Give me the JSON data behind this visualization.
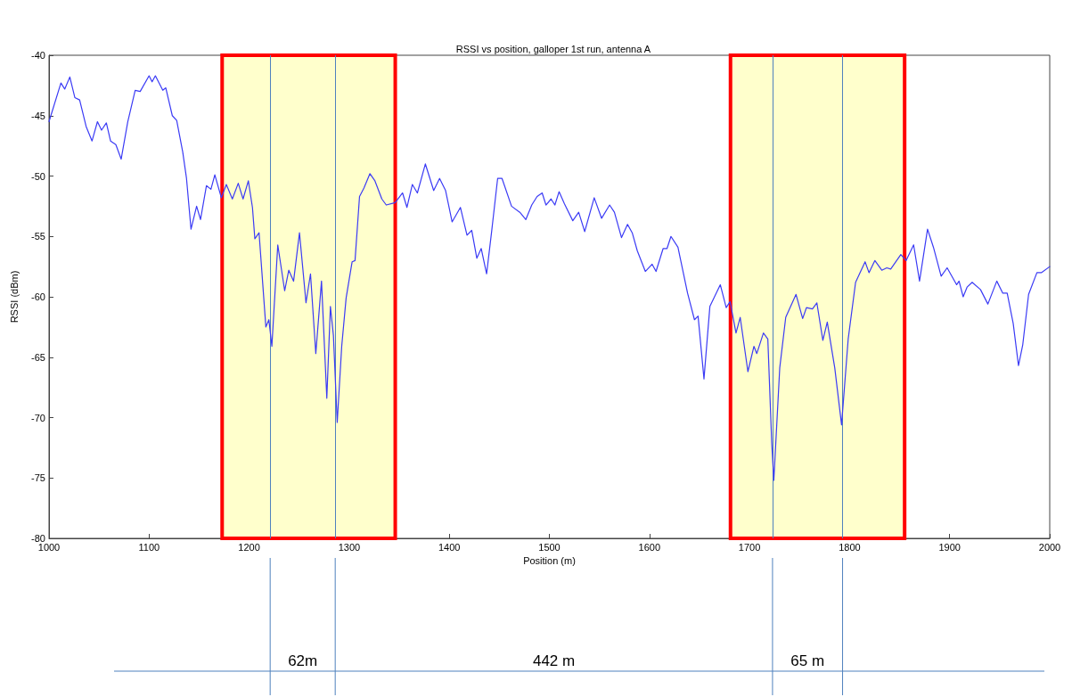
{
  "chart_data": {
    "type": "line",
    "title": "RSSI vs position, galloper 1st run, antenna A",
    "xlabel": "Position (m)",
    "ylabel": "RSSI (dBm)",
    "series": [
      {
        "color": "#3b3bf5",
        "x": [
          1000,
          1011.9,
          1015.7,
          1020.8,
          1025.8,
          1030.6,
          1037.1,
          1043,
          1048.4,
          1052.5,
          1057.3,
          1061.5,
          1066.8,
          1072.1,
          1078.7,
          1086.1,
          1091.1,
          1100,
          1103,
          1106.3,
          1113.7,
          1116.7,
          1123.2,
          1127.6,
          1133.6,
          1137.4,
          1141.9,
          1147.5,
          1151.4,
          1157.3,
          1161.8,
          1165.7,
          1172.2,
          1177.2,
          1183.2,
          1189.1,
          1193.9,
          1199.2,
          1203.3,
          1205.7,
          1209.9,
          1216.7,
          1219.7,
          1222.7,
          1228.6,
          1235.5,
          1239.6,
          1244.4,
          1250.3,
          1256.8,
          1261.3,
          1266.6,
          1272.3,
          1277.6,
          1281.2,
          1284.2,
          1288,
          1292.5,
          1296.9,
          1302.9,
          1305.8,
          1310.3,
          1314.7,
          1320.7,
          1325.7,
          1332.6,
          1337,
          1345.9,
          1353.3,
          1357.7,
          1363.1,
          1368.1,
          1376.1,
          1384.4,
          1390.3,
          1396.3,
          1402.8,
          1411.1,
          1417.7,
          1422.4,
          1427.5,
          1431.9,
          1437.3,
          1442.3,
          1448.3,
          1452.7,
          1462.2,
          1470.5,
          1476.5,
          1482.4,
          1487.7,
          1492.8,
          1496.6,
          1501.7,
          1505.5,
          1509.7,
          1515.1,
          1523.4,
          1529.3,
          1535.3,
          1544.8,
          1552.2,
          1560.2,
          1565,
          1572.1,
          1578.1,
          1582.8,
          1587.9,
          1595.9,
          1602.7,
          1606.6,
          1613.7,
          1617.6,
          1621.5,
          1628.5,
          1638.1,
          1645,
          1648.6,
          1654.5,
          1660.4,
          1670.8,
          1676.7,
          1680.6,
          1686.5,
          1690.7,
          1698.4,
          1704.4,
          1707.3,
          1713.9,
          1718.3,
          1722.2,
          1724.3,
          1730.2,
          1736.2,
          1746.5,
          1753.1,
          1756.9,
          1762.9,
          1767.3,
          1773.3,
          1777.7,
          1785.2,
          1792,
          1798.6,
          1806,
          1815.5,
          1819.4,
          1825.3,
          1832.2,
          1837.2,
          1841.1,
          1851.2,
          1856.5,
          1864,
          1869.9,
          1877.9,
          1883.8,
          1891.5,
          1897.5,
          1907,
          1909.4,
          1913.5,
          1917.4,
          1922.5,
          1930.8,
          1938.2,
          1947.1,
          1953.1,
          1957.5,
          1963.5,
          1968.8,
          1973,
          1978.9,
          1987.2,
          1991.6,
          2000
        ],
        "values": [
          -45.5,
          -42.3,
          -42.8,
          -41.8,
          -43.5,
          -43.7,
          -45.9,
          -47.1,
          -45.5,
          -46.2,
          -45.6,
          -47.1,
          -47.4,
          -48.6,
          -45.5,
          -42.9,
          -43,
          -41.7,
          -42.2,
          -41.7,
          -42.9,
          -42.7,
          -45,
          -45.4,
          -48,
          -50.2,
          -54.4,
          -52.5,
          -53.6,
          -50.8,
          -51.1,
          -49.9,
          -51.8,
          -50.7,
          -51.9,
          -50.6,
          -51.9,
          -50.4,
          -52.6,
          -55.2,
          -54.7,
          -62.5,
          -61.9,
          -64.1,
          -55.7,
          -59.5,
          -57.8,
          -58.7,
          -54.7,
          -60.5,
          -58.1,
          -64.7,
          -58.7,
          -68.4,
          -60.8,
          -63.2,
          -70.4,
          -64.1,
          -60.1,
          -57.1,
          -57,
          -51.7,
          -51,
          -49.8,
          -50.4,
          -51.9,
          -52.4,
          -52.2,
          -51.4,
          -52.6,
          -50.7,
          -51.4,
          -49,
          -51.2,
          -50.2,
          -51.2,
          -53.8,
          -52.6,
          -54.9,
          -54.5,
          -56.8,
          -56,
          -58.1,
          -54.6,
          -50.2,
          -50.2,
          -52.5,
          -53,
          -53.6,
          -52.4,
          -51.7,
          -51.4,
          -52.4,
          -51.9,
          -52.4,
          -51.3,
          -52.3,
          -53.7,
          -53,
          -54.6,
          -51.8,
          -53.5,
          -52.4,
          -53,
          -55.1,
          -54,
          -54.7,
          -56.2,
          -57.9,
          -57.3,
          -57.9,
          -56,
          -56,
          -55,
          -55.9,
          -59.7,
          -61.9,
          -61.6,
          -66.8,
          -60.8,
          -59,
          -60.9,
          -60.4,
          -63,
          -61.7,
          -66.2,
          -64.1,
          -64.7,
          -63,
          -63.5,
          -72.1,
          -75.2,
          -65.9,
          -61.7,
          -59.8,
          -61.8,
          -60.9,
          -61,
          -60.5,
          -63.6,
          -62.1,
          -65.9,
          -70.6,
          -63.5,
          -58.8,
          -57.1,
          -58,
          -57,
          -57.8,
          -57.6,
          -57.7,
          -56.5,
          -57,
          -55.7,
          -58.7,
          -54.4,
          -55.9,
          -58.3,
          -57.6,
          -59,
          -58.7,
          -60,
          -59.2,
          -58.8,
          -59.4,
          -60.6,
          -58.7,
          -59.7,
          -59.7,
          -62.2,
          -65.7,
          -64,
          -59.8,
          -58,
          -58,
          -57.5
        ]
      }
    ],
    "xlim": [
      1000,
      2000
    ],
    "xticks": [
      1000,
      1100,
      1200,
      1300,
      1400,
      1500,
      1600,
      1700,
      1800,
      1900,
      2000
    ],
    "ylim": [
      -80,
      -40
    ],
    "yticks": [
      -80,
      -75,
      -70,
      -65,
      -60,
      -55,
      -50,
      -45,
      -40
    ],
    "grid": false,
    "marker": "none",
    "line_style": "solid",
    "bands": [
      {
        "axis": "x",
        "from": 1173,
        "to": 1346,
        "color": "#ffffcc"
      },
      {
        "axis": "x",
        "from": 1681,
        "to": 1855,
        "color": "#ffffcc"
      }
    ],
    "ref_lines": [
      {
        "axis": "x",
        "value": 1221,
        "color": "#4f81bd"
      },
      {
        "axis": "x",
        "value": 1286,
        "color": "#4f81bd"
      },
      {
        "axis": "x",
        "value": 1723,
        "color": "#4f81bd"
      },
      {
        "axis": "x",
        "value": 1793,
        "color": "#4f81bd"
      }
    ],
    "annotations": [
      "62m",
      "442 m",
      "65 m"
    ]
  }
}
